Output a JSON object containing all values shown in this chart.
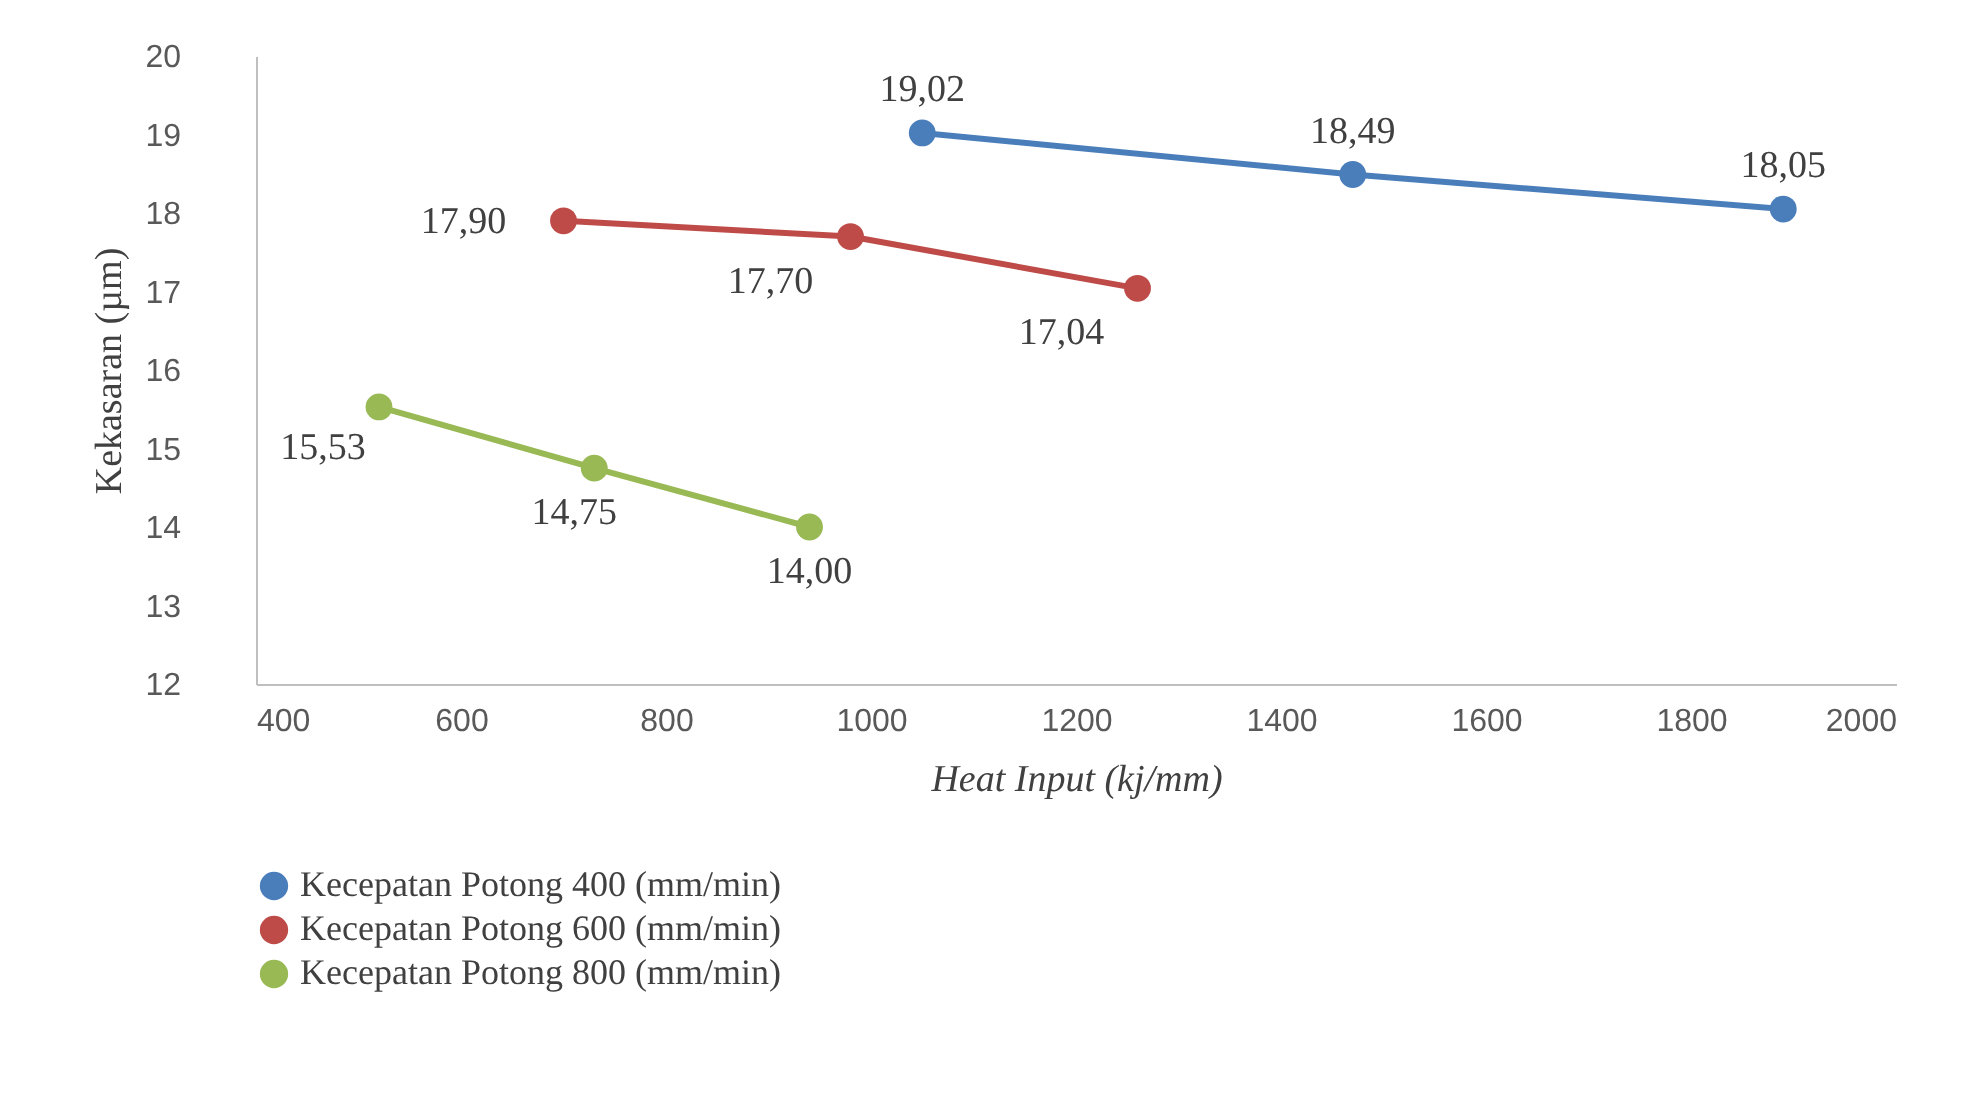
{
  "chart_data": {
    "type": "line",
    "xlabel": "Heat Input (kj/mm)",
    "ylabel": "Kekasaran (µm)",
    "xlim": [
      400,
      2000
    ],
    "xticks": [
      400,
      600,
      800,
      1000,
      1200,
      1400,
      1600,
      1800,
      2000
    ],
    "ylim": [
      12,
      20
    ],
    "yticks": [
      12,
      13,
      14,
      15,
      16,
      17,
      18,
      19,
      20
    ],
    "series": [
      {
        "name": "Kecepatan Potong 400 (mm/min)",
        "color": "#4a7ebb",
        "x": [
          1050,
          1470,
          1890
        ],
        "values": [
          19.02,
          18.49,
          18.05
        ],
        "value_labels": [
          "19,02",
          "18,49",
          "18,05"
        ]
      },
      {
        "name": "Kecepatan Potong 600 (mm/min)",
        "color": "#be4b48",
        "x": [
          700,
          980,
          1260
        ],
        "values": [
          17.9,
          17.7,
          17.04
        ],
        "value_labels": [
          "17,90",
          "17,70",
          "17,04"
        ]
      },
      {
        "name": "Kecepatan Potong 800 (mm/min)",
        "color": "#98b954",
        "x": [
          520,
          730,
          940
        ],
        "values": [
          15.53,
          14.75,
          14.0
        ],
        "value_labels": [
          "15,53",
          "14,75",
          "14,00"
        ]
      }
    ],
    "marker": "circle",
    "line_style": "solid",
    "grid": false,
    "legend": "bottom"
  }
}
